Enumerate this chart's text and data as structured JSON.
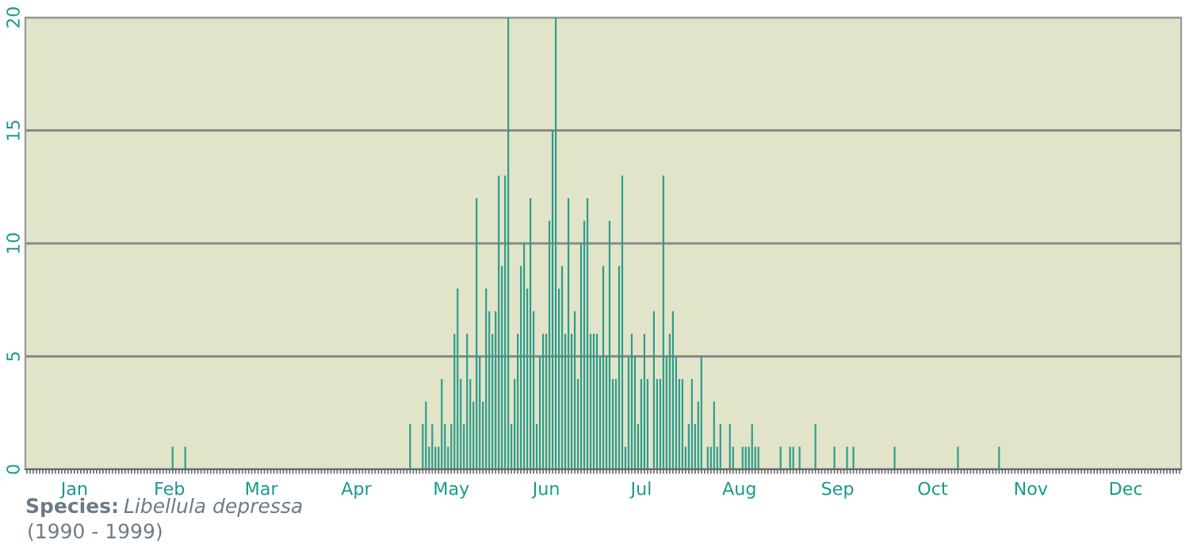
{
  "chart_data": {
    "type": "bar",
    "annotations": [
      "Species:",
      "Libellula depressa",
      "(1990 - 1999)"
    ],
    "categories": [
      null,
      null,
      null,
      null,
      null,
      null,
      null,
      null,
      null,
      null,
      null,
      null,
      null,
      null,
      null,
      "Jan",
      null,
      null,
      null,
      null,
      null,
      null,
      null,
      null,
      null,
      null,
      null,
      null,
      null,
      null,
      null,
      null,
      null,
      null,
      null,
      null,
      null,
      null,
      null,
      null,
      null,
      null,
      null,
      null,
      null,
      "Feb",
      null,
      null,
      null,
      null,
      null,
      null,
      null,
      null,
      null,
      null,
      null,
      null,
      null,
      null,
      null,
      null,
      null,
      null,
      null,
      null,
      null,
      null,
      null,
      null,
      null,
      null,
      null,
      null,
      "Mar",
      null,
      null,
      null,
      null,
      null,
      null,
      null,
      null,
      null,
      null,
      null,
      null,
      null,
      null,
      null,
      null,
      null,
      null,
      null,
      null,
      null,
      null,
      null,
      null,
      null,
      null,
      null,
      null,
      null,
      "Apr",
      null,
      null,
      null,
      null,
      null,
      null,
      null,
      null,
      null,
      null,
      null,
      null,
      null,
      null,
      null,
      null,
      null,
      null,
      null,
      null,
      null,
      null,
      null,
      null,
      null,
      null,
      null,
      null,
      null,
      "May",
      null,
      null,
      null,
      null,
      null,
      null,
      null,
      null,
      null,
      null,
      null,
      null,
      null,
      null,
      null,
      null,
      null,
      null,
      null,
      null,
      null,
      null,
      null,
      null,
      null,
      null,
      null,
      null,
      null,
      "Jun",
      null,
      null,
      null,
      null,
      null,
      null,
      null,
      null,
      null,
      null,
      null,
      null,
      null,
      null,
      null,
      null,
      null,
      null,
      null,
      null,
      null,
      null,
      null,
      null,
      null,
      null,
      null,
      null,
      null,
      "Jul",
      null,
      null,
      null,
      null,
      null,
      null,
      null,
      null,
      null,
      null,
      null,
      null,
      null,
      null,
      null,
      null,
      null,
      null,
      null,
      null,
      null,
      null,
      null,
      null,
      null,
      null,
      null,
      null,
      null,
      null,
      "Aug",
      null,
      null,
      null,
      null,
      null,
      null,
      null,
      null,
      null,
      null,
      null,
      null,
      null,
      null,
      null,
      null,
      null,
      null,
      null,
      null,
      null,
      null,
      null,
      null,
      null,
      null,
      null,
      null,
      null,
      null,
      "Sep",
      null,
      null,
      null,
      null,
      null,
      null,
      null,
      null,
      null,
      null,
      null,
      null,
      null,
      null,
      null,
      null,
      null,
      null,
      null,
      null,
      null,
      null,
      null,
      null,
      null,
      null,
      null,
      null,
      null,
      "Oct",
      null,
      null,
      null,
      null,
      null,
      null,
      null,
      null,
      null,
      null,
      null,
      null,
      null,
      null,
      null,
      null,
      null,
      null,
      null,
      null,
      null,
      null,
      null,
      null,
      null,
      null,
      null,
      null,
      null,
      null,
      "Nov",
      null,
      null,
      null,
      null,
      null,
      null,
      null,
      null,
      null,
      null,
      null,
      null,
      null,
      null,
      null,
      null,
      null,
      null,
      null,
      null,
      null,
      null,
      null,
      null,
      null,
      null,
      null,
      null,
      null,
      "Dec",
      null,
      null,
      null,
      null,
      null,
      null,
      null,
      null,
      null,
      null,
      null,
      null,
      null,
      null,
      null,
      null,
      null
    ],
    "values": [
      0,
      0,
      0,
      0,
      0,
      0,
      0,
      0,
      0,
      0,
      0,
      0,
      0,
      0,
      0,
      0,
      0,
      0,
      0,
      0,
      0,
      0,
      0,
      0,
      0,
      0,
      0,
      0,
      0,
      0,
      0,
      0,
      0,
      0,
      0,
      0,
      0,
      0,
      0,
      0,
      0,
      0,
      0,
      0,
      0,
      0,
      1,
      0,
      0,
      0,
      1,
      0,
      0,
      0,
      0,
      0,
      0,
      0,
      0,
      0,
      0,
      0,
      0,
      0,
      0,
      0,
      0,
      0,
      0,
      0,
      0,
      0,
      0,
      0,
      0,
      0,
      0,
      0,
      0,
      0,
      0,
      0,
      0,
      0,
      0,
      0,
      0,
      0,
      0,
      0,
      0,
      0,
      0,
      0,
      0,
      0,
      0,
      0,
      0,
      0,
      0,
      0,
      0,
      0,
      0,
      0,
      0,
      0,
      0,
      0,
      0,
      0,
      0,
      0,
      0,
      0,
      0,
      0,
      0,
      0,
      0,
      2,
      0,
      0,
      0,
      2,
      3,
      1,
      2,
      1,
      1,
      4,
      2,
      1,
      2,
      6,
      8,
      4,
      2,
      6,
      4,
      3,
      12,
      5,
      3,
      8,
      7,
      6,
      7,
      13,
      9,
      13,
      20,
      2,
      4,
      6,
      9,
      10,
      8,
      12,
      7,
      2,
      5,
      6,
      6,
      11,
      15,
      20,
      8,
      9,
      6,
      12,
      6,
      7,
      4,
      10,
      11,
      12,
      6,
      6,
      6,
      5,
      9,
      5,
      11,
      4,
      4,
      9,
      13,
      1,
      5,
      6,
      5,
      2,
      4,
      6,
      4,
      0,
      7,
      4,
      4,
      13,
      5,
      6,
      7,
      5,
      4,
      4,
      1,
      2,
      4,
      2,
      3,
      5,
      0,
      1,
      1,
      3,
      1,
      2,
      0,
      0,
      2,
      1,
      0,
      0,
      1,
      1,
      1,
      2,
      1,
      1,
      0,
      0,
      0,
      0,
      0,
      0,
      1,
      0,
      0,
      1,
      1,
      0,
      1,
      0,
      0,
      0,
      0,
      2,
      0,
      0,
      0,
      0,
      0,
      1,
      0,
      0,
      0,
      1,
      0,
      1,
      0,
      0,
      0,
      0,
      0,
      0,
      0,
      0,
      0,
      0,
      0,
      0,
      1,
      0,
      0,
      0,
      0,
      0,
      0,
      0,
      0,
      0,
      0,
      0,
      0,
      0,
      0,
      0,
      0,
      0,
      0,
      0,
      1,
      0,
      0,
      0,
      0,
      0,
      0,
      0,
      0,
      0,
      0,
      0,
      0,
      1,
      0,
      0,
      0,
      0,
      0,
      0,
      0,
      0,
      0,
      0,
      0,
      0,
      0,
      0,
      0,
      0,
      0,
      0,
      0,
      0,
      0,
      0,
      0,
      0,
      0,
      0,
      0,
      0,
      0,
      0,
      0,
      0,
      0,
      0,
      0,
      0,
      0,
      0,
      0,
      0,
      0,
      0,
      0,
      0,
      0,
      0,
      0,
      0,
      0,
      0,
      0,
      0,
      0,
      0,
      0,
      0,
      0
    ],
    "color": "#2e9c8c",
    "ylim": [
      0,
      20
    ],
    "yticks": [
      0,
      5,
      10,
      15,
      20
    ],
    "grid": "y"
  }
}
